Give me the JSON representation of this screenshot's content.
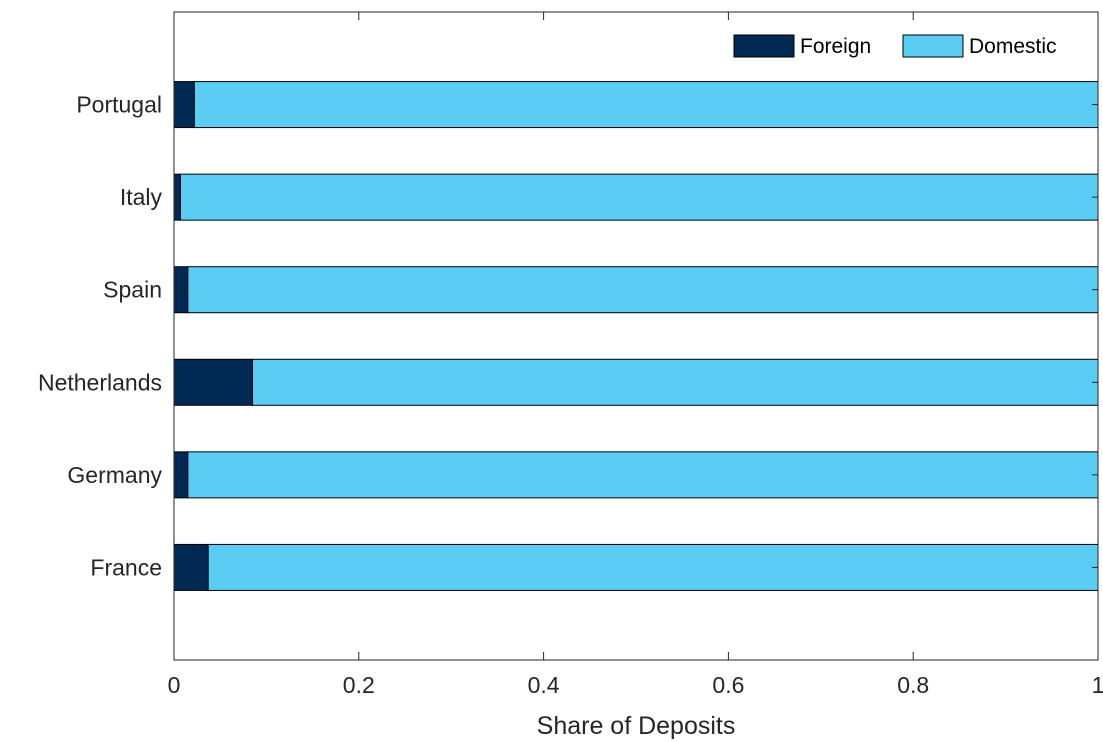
{
  "chart_data": {
    "type": "bar",
    "orientation": "horizontal",
    "stacked": true,
    "categories": [
      "France",
      "Germany",
      "Netherlands",
      "Spain",
      "Italy",
      "Portugal"
    ],
    "series": [
      {
        "name": "Foreign",
        "color": "#002a54",
        "values": [
          0.037,
          0.015,
          0.085,
          0.015,
          0.007,
          0.022
        ]
      },
      {
        "name": "Domestic",
        "color": "#5bcdf4",
        "values": [
          0.963,
          0.985,
          0.915,
          0.985,
          0.993,
          0.978
        ]
      }
    ],
    "xlabel": "Share of Deposits",
    "ylabel": "",
    "xlim": [
      0,
      1
    ],
    "xticks": [
      "0",
      "0.2",
      "0.4",
      "0.6",
      "0.8",
      "1"
    ],
    "legend_position": "top-right",
    "grid": false
  }
}
